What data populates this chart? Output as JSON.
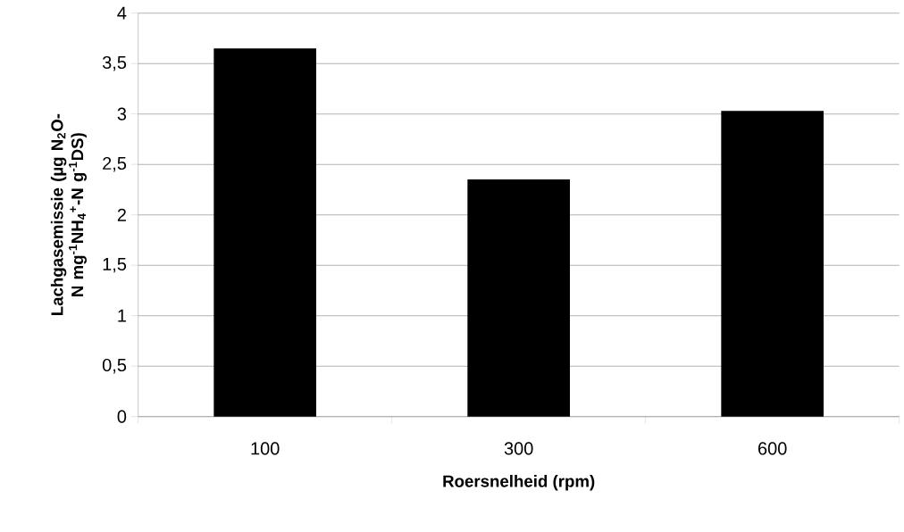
{
  "chart_data": {
    "type": "bar",
    "xlabel": "Roersnelheid (rpm)",
    "ylabel": "Lachgasemissie (µg N$_{2}$O-N mg$^{-1}$NH$_{4}$$^{+}$-N g$^{-1}$DS)",
    "categories": [
      "100",
      "300",
      "600"
    ],
    "values": [
      3.65,
      2.35,
      3.03
    ],
    "color": "#000000",
    "ylim": [
      0,
      4
    ],
    "yticks": [
      0,
      {
        "value": 0.5,
        "label": "0,5"
      },
      1,
      {
        "value": 1.5,
        "label": "1,5"
      },
      2,
      {
        "value": 2.5,
        "label": "2,5"
      },
      3,
      {
        "value": 3.5,
        "label": "3,5"
      },
      4
    ],
    "grid": "y"
  }
}
